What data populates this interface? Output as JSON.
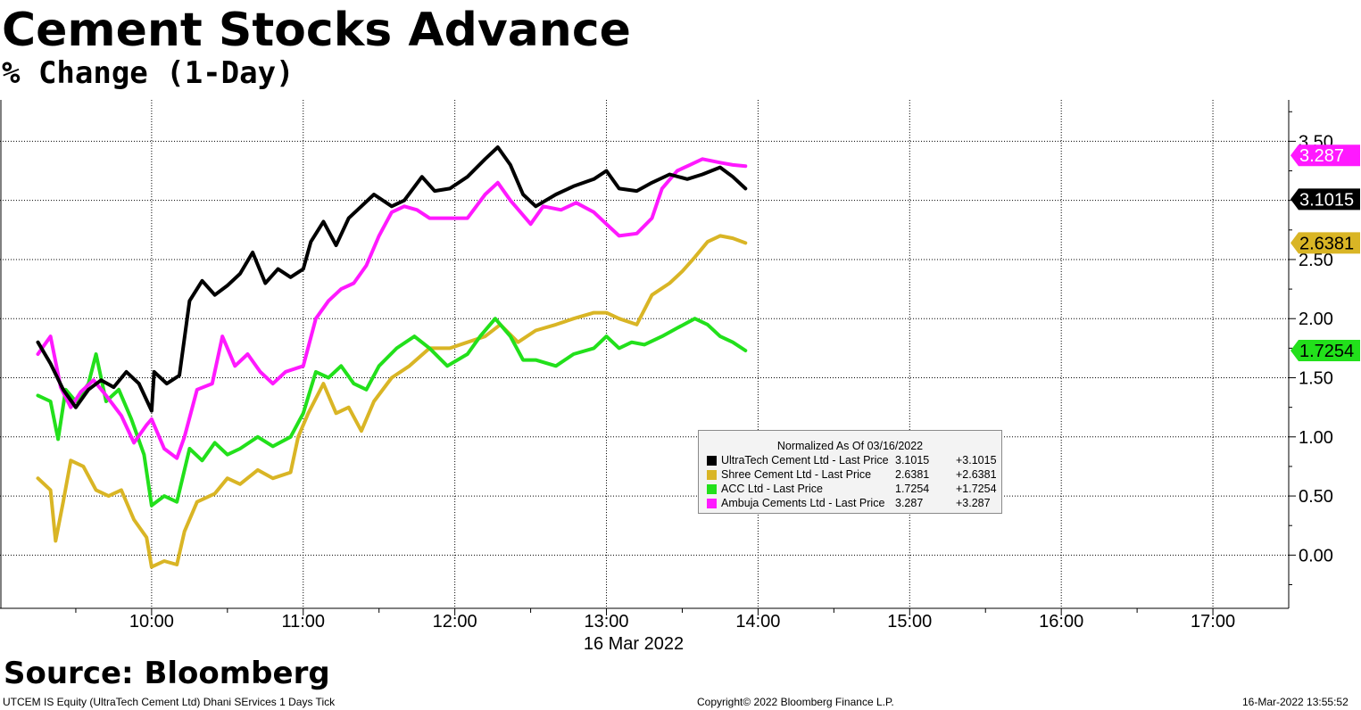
{
  "title": "Cement Stocks Advance",
  "subtitle": "% Change (1-Day)",
  "source": "Source: Bloomberg",
  "footer": {
    "left": "UTCEM IS Equity (UltraTech Cement Ltd) Dhani SErvices 1 Days  Tick",
    "center": "Copyright© 2022 Bloomberg Finance L.P.",
    "right": "16-Mar-2022 13:55:52"
  },
  "legend": {
    "title": "Normalized As Of 03/16/2022",
    "rows": [
      {
        "name": "UltraTech Cement Ltd  - Last Price",
        "value": "3.1015",
        "change": "+3.1015"
      },
      {
        "name": "Shree Cement Ltd  - Last Price",
        "value": "2.6381",
        "change": "+2.6381"
      },
      {
        "name": "ACC Ltd  - Last Price",
        "value": "1.7254",
        "change": "+1.7254"
      },
      {
        "name": "Ambuja Cements Ltd  - Last Price",
        "value": "3.287",
        "change": "+3.287"
      }
    ]
  },
  "chart_data": {
    "type": "line",
    "title": "Cement Stocks Advance",
    "subtitle": "% Change (1-Day)",
    "xlabel": "16 Mar 2022",
    "ylabel": "",
    "x_ticks": [
      "10:00",
      "11:00",
      "12:00",
      "13:00",
      "14:00",
      "15:00",
      "16:00",
      "17:00"
    ],
    "y_ticks": [
      "0.00",
      "0.50",
      "1.00",
      "1.50",
      "2.00",
      "2.50",
      "3.00",
      "3.50"
    ],
    "xlim": [
      "09:00",
      "17:30"
    ],
    "ylim": [
      -0.45,
      3.85
    ],
    "grid": true,
    "y_axis_side": "right",
    "legend_position": "center-right inside plot",
    "series": [
      {
        "name": "UltraTech Cement Ltd - Last Price",
        "color": "#000000",
        "last_label": "3.1015",
        "label_bg": "#000000",
        "label_fg": "#ffffff",
        "points": [
          [
            "09:15",
            1.8
          ],
          [
            "09:20",
            1.62
          ],
          [
            "09:25",
            1.4
          ],
          [
            "09:30",
            1.25
          ],
          [
            "09:35",
            1.4
          ],
          [
            "09:40",
            1.48
          ],
          [
            "09:45",
            1.42
          ],
          [
            "09:50",
            1.55
          ],
          [
            "09:55",
            1.45
          ],
          [
            "10:00",
            1.22
          ],
          [
            "10:01",
            1.55
          ],
          [
            "10:06",
            1.45
          ],
          [
            "10:11",
            1.52
          ],
          [
            "10:15",
            2.15
          ],
          [
            "10:20",
            2.32
          ],
          [
            "10:25",
            2.2
          ],
          [
            "10:30",
            2.28
          ],
          [
            "10:35",
            2.38
          ],
          [
            "10:40",
            2.56
          ],
          [
            "10:45",
            2.3
          ],
          [
            "10:50",
            2.42
          ],
          [
            "10:55",
            2.35
          ],
          [
            "11:00",
            2.42
          ],
          [
            "11:03",
            2.65
          ],
          [
            "11:08",
            2.82
          ],
          [
            "11:13",
            2.62
          ],
          [
            "11:18",
            2.85
          ],
          [
            "11:23",
            2.95
          ],
          [
            "11:28",
            3.05
          ],
          [
            "11:35",
            2.95
          ],
          [
            "11:40",
            3.0
          ],
          [
            "11:47",
            3.2
          ],
          [
            "11:52",
            3.08
          ],
          [
            "11:58",
            3.1
          ],
          [
            "12:05",
            3.2
          ],
          [
            "12:12",
            3.35
          ],
          [
            "12:17",
            3.45
          ],
          [
            "12:22",
            3.3
          ],
          [
            "12:27",
            3.05
          ],
          [
            "12:32",
            2.95
          ],
          [
            "12:40",
            3.05
          ],
          [
            "12:47",
            3.12
          ],
          [
            "12:55",
            3.18
          ],
          [
            "13:00",
            3.25
          ],
          [
            "13:05",
            3.1
          ],
          [
            "13:12",
            3.08
          ],
          [
            "13:18",
            3.15
          ],
          [
            "13:25",
            3.22
          ],
          [
            "13:32",
            3.18
          ],
          [
            "13:38",
            3.22
          ],
          [
            "13:45",
            3.28
          ],
          [
            "13:50",
            3.2
          ],
          [
            "13:55",
            3.1
          ]
        ]
      },
      {
        "name": "Shree Cement Ltd - Last Price",
        "color": "#d9b525",
        "last_label": "2.6381",
        "label_bg": "#d9b525",
        "label_fg": "#000000",
        "points": [
          [
            "09:15",
            0.65
          ],
          [
            "09:20",
            0.55
          ],
          [
            "09:22",
            0.12
          ],
          [
            "09:25",
            0.45
          ],
          [
            "09:28",
            0.8
          ],
          [
            "09:33",
            0.75
          ],
          [
            "09:38",
            0.55
          ],
          [
            "09:43",
            0.5
          ],
          [
            "09:48",
            0.55
          ],
          [
            "09:53",
            0.3
          ],
          [
            "09:58",
            0.15
          ],
          [
            "10:00",
            -0.1
          ],
          [
            "10:05",
            -0.05
          ],
          [
            "10:10",
            -0.08
          ],
          [
            "10:13",
            0.2
          ],
          [
            "10:18",
            0.45
          ],
          [
            "10:25",
            0.52
          ],
          [
            "10:30",
            0.65
          ],
          [
            "10:35",
            0.6
          ],
          [
            "10:42",
            0.72
          ],
          [
            "10:48",
            0.65
          ],
          [
            "10:55",
            0.7
          ],
          [
            "10:58",
            1.0
          ],
          [
            "11:02",
            1.2
          ],
          [
            "11:08",
            1.45
          ],
          [
            "11:13",
            1.2
          ],
          [
            "11:18",
            1.25
          ],
          [
            "11:23",
            1.05
          ],
          [
            "11:28",
            1.3
          ],
          [
            "11:35",
            1.5
          ],
          [
            "11:42",
            1.6
          ],
          [
            "11:50",
            1.75
          ],
          [
            "11:58",
            1.75
          ],
          [
            "12:05",
            1.8
          ],
          [
            "12:12",
            1.85
          ],
          [
            "12:18",
            1.95
          ],
          [
            "12:25",
            1.8
          ],
          [
            "12:32",
            1.9
          ],
          [
            "12:40",
            1.95
          ],
          [
            "12:47",
            2.0
          ],
          [
            "12:55",
            2.05
          ],
          [
            "13:00",
            2.05
          ],
          [
            "13:05",
            2.0
          ],
          [
            "13:12",
            1.95
          ],
          [
            "13:18",
            2.2
          ],
          [
            "13:25",
            2.3
          ],
          [
            "13:30",
            2.4
          ],
          [
            "13:35",
            2.52
          ],
          [
            "13:40",
            2.65
          ],
          [
            "13:45",
            2.7
          ],
          [
            "13:50",
            2.68
          ],
          [
            "13:55",
            2.64
          ]
        ]
      },
      {
        "name": "ACC Ltd - Last Price",
        "color": "#22e01b",
        "last_label": "1.7254",
        "label_bg": "#22e01b",
        "label_fg": "#000000",
        "points": [
          [
            "09:15",
            1.35
          ],
          [
            "09:20",
            1.3
          ],
          [
            "09:23",
            0.98
          ],
          [
            "09:26",
            1.4
          ],
          [
            "09:30",
            1.3
          ],
          [
            "09:35",
            1.45
          ],
          [
            "09:38",
            1.7
          ],
          [
            "09:42",
            1.3
          ],
          [
            "09:47",
            1.4
          ],
          [
            "09:52",
            1.15
          ],
          [
            "09:57",
            0.85
          ],
          [
            "10:00",
            0.42
          ],
          [
            "10:05",
            0.5
          ],
          [
            "10:10",
            0.45
          ],
          [
            "10:15",
            0.9
          ],
          [
            "10:20",
            0.8
          ],
          [
            "10:25",
            0.95
          ],
          [
            "10:30",
            0.85
          ],
          [
            "10:35",
            0.9
          ],
          [
            "10:42",
            1.0
          ],
          [
            "10:48",
            0.92
          ],
          [
            "10:55",
            1.0
          ],
          [
            "11:00",
            1.2
          ],
          [
            "11:05",
            1.55
          ],
          [
            "11:10",
            1.5
          ],
          [
            "11:15",
            1.6
          ],
          [
            "11:20",
            1.45
          ],
          [
            "11:25",
            1.4
          ],
          [
            "11:30",
            1.6
          ],
          [
            "11:37",
            1.75
          ],
          [
            "11:44",
            1.85
          ],
          [
            "11:50",
            1.75
          ],
          [
            "11:57",
            1.6
          ],
          [
            "12:05",
            1.7
          ],
          [
            "12:10",
            1.85
          ],
          [
            "12:16",
            2.0
          ],
          [
            "12:22",
            1.85
          ],
          [
            "12:27",
            1.65
          ],
          [
            "12:32",
            1.65
          ],
          [
            "12:40",
            1.6
          ],
          [
            "12:47",
            1.7
          ],
          [
            "12:55",
            1.75
          ],
          [
            "13:00",
            1.85
          ],
          [
            "13:05",
            1.75
          ],
          [
            "13:10",
            1.8
          ],
          [
            "13:15",
            1.78
          ],
          [
            "13:22",
            1.85
          ],
          [
            "13:28",
            1.92
          ],
          [
            "13:35",
            2.0
          ],
          [
            "13:40",
            1.95
          ],
          [
            "13:45",
            1.85
          ],
          [
            "13:50",
            1.8
          ],
          [
            "13:55",
            1.73
          ]
        ]
      },
      {
        "name": "Ambuja Cements Ltd - Last Price",
        "color": "#ff19ff",
        "last_label": "3.287",
        "label_bg": "#ff19ff",
        "label_fg": "#ffffff",
        "points": [
          [
            "09:15",
            1.7
          ],
          [
            "09:20",
            1.85
          ],
          [
            "09:24",
            1.42
          ],
          [
            "09:28",
            1.25
          ],
          [
            "09:32",
            1.38
          ],
          [
            "09:37",
            1.48
          ],
          [
            "09:42",
            1.35
          ],
          [
            "09:48",
            1.18
          ],
          [
            "09:53",
            0.95
          ],
          [
            "09:58",
            1.1
          ],
          [
            "10:00",
            1.15
          ],
          [
            "10:05",
            0.9
          ],
          [
            "10:10",
            0.82
          ],
          [
            "10:13",
            1.0
          ],
          [
            "10:18",
            1.4
          ],
          [
            "10:24",
            1.45
          ],
          [
            "10:28",
            1.85
          ],
          [
            "10:33",
            1.6
          ],
          [
            "10:38",
            1.7
          ],
          [
            "10:43",
            1.55
          ],
          [
            "10:48",
            1.45
          ],
          [
            "10:53",
            1.55
          ],
          [
            "11:00",
            1.6
          ],
          [
            "11:05",
            2.0
          ],
          [
            "11:10",
            2.15
          ],
          [
            "11:15",
            2.25
          ],
          [
            "11:20",
            2.3
          ],
          [
            "11:25",
            2.45
          ],
          [
            "11:30",
            2.7
          ],
          [
            "11:35",
            2.9
          ],
          [
            "11:40",
            2.95
          ],
          [
            "11:45",
            2.92
          ],
          [
            "11:50",
            2.85
          ],
          [
            "11:55",
            2.85
          ],
          [
            "12:05",
            2.85
          ],
          [
            "12:12",
            3.05
          ],
          [
            "12:17",
            3.15
          ],
          [
            "12:22",
            3.0
          ],
          [
            "12:30",
            2.8
          ],
          [
            "12:35",
            2.95
          ],
          [
            "12:42",
            2.92
          ],
          [
            "12:48",
            2.98
          ],
          [
            "12:55",
            2.9
          ],
          [
            "13:00",
            2.8
          ],
          [
            "13:05",
            2.7
          ],
          [
            "13:12",
            2.72
          ],
          [
            "13:18",
            2.85
          ],
          [
            "13:22",
            3.1
          ],
          [
            "13:28",
            3.25
          ],
          [
            "13:33",
            3.3
          ],
          [
            "13:38",
            3.35
          ],
          [
            "13:45",
            3.32
          ],
          [
            "13:50",
            3.3
          ],
          [
            "13:55",
            3.29
          ]
        ]
      }
    ]
  }
}
